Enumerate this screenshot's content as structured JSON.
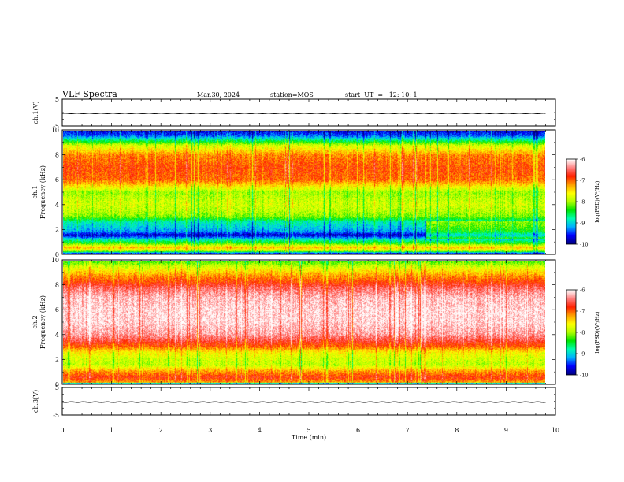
{
  "header": {
    "title": "VLF Spectra",
    "date": "Mar.30, 2024",
    "station": "station=MOS",
    "start": "start  UT  =   12: 10: 1"
  },
  "colors": {
    "spectrogram_scale": [
      "#00007f",
      "#0000ff",
      "#00b0ff",
      "#00ffb0",
      "#00e600",
      "#b0ff00",
      "#ffff00",
      "#ffa000",
      "#ff2000",
      "#ff8080",
      "#ffffff"
    ]
  },
  "chart_data": [
    {
      "type": "line",
      "ylabel": "ch.1(V)",
      "ylim": [
        -5,
        5
      ],
      "y_ticks": [
        "5",
        "-5"
      ],
      "xlim": [
        0,
        10
      ],
      "series": [
        {
          "values_approx_constant": -0.3
        }
      ]
    },
    {
      "type": "heatmap",
      "ylabel_line1": "ch.1",
      "ylabel_line2": "Frequency (kHz)",
      "ylim": [
        0,
        10
      ],
      "y_ticks": [
        "0",
        "2",
        "4",
        "6",
        "8",
        "10"
      ],
      "xlim": [
        0,
        9.8
      ],
      "colorbar": {
        "label": "log(PSD)(V²/Hz)",
        "ticks": [
          "-6",
          "-7",
          "-8",
          "-9",
          "-10"
        ],
        "range": [
          -10,
          -6
        ]
      },
      "freq_profile_kHz": [
        0.0,
        0.2,
        0.5,
        0.8,
        1.2,
        1.5,
        1.8,
        2.2,
        2.6,
        3.0,
        3.5,
        4.0,
        4.5,
        5.0,
        5.5,
        6.0,
        7.0,
        8.0,
        8.8,
        9.2,
        9.6,
        10.0
      ],
      "log_psd_profile": [
        -9.8,
        -8.0,
        -7.3,
        -8.2,
        -9.0,
        -9.8,
        -9.2,
        -9.0,
        -8.8,
        -8.1,
        -7.9,
        -7.8,
        -7.9,
        -8.0,
        -7.5,
        -7.0,
        -6.9,
        -7.1,
        -7.8,
        -8.6,
        -9.4,
        -9.7
      ]
    },
    {
      "type": "heatmap",
      "ylabel_line1": "ch.2",
      "ylabel_line2": "Frequency (kHz)",
      "ylim": [
        0,
        10
      ],
      "y_ticks": [
        "0",
        "2",
        "4",
        "6",
        "8",
        "10"
      ],
      "xlim": [
        0,
        9.8
      ],
      "colorbar": {
        "label": "log(PSD)(V²/Hz)",
        "ticks": [
          "-6",
          "-7",
          "-8",
          "-9",
          "-10"
        ],
        "range": [
          -10,
          -6
        ]
      },
      "freq_profile_kHz": [
        0.0,
        0.1,
        0.5,
        1.0,
        1.5,
        2.0,
        2.5,
        3.0,
        3.5,
        4.0,
        5.0,
        6.0,
        7.0,
        7.8,
        8.3,
        8.8,
        9.3,
        9.7,
        10.0
      ],
      "log_psd_profile": [
        -9.8,
        -7.2,
        -6.8,
        -7.2,
        -7.9,
        -7.8,
        -7.6,
        -7.0,
        -6.6,
        -6.3,
        -6.1,
        -6.1,
        -6.2,
        -6.5,
        -6.9,
        -7.2,
        -7.6,
        -8.0,
        -8.3
      ]
    },
    {
      "type": "line",
      "ylabel": "ch.3(V)",
      "ylim": [
        -5,
        5
      ],
      "y_ticks": [
        "5",
        "-5"
      ],
      "xlim": [
        0,
        10
      ],
      "series": [
        {
          "values_approx_constant": -0.3
        }
      ]
    }
  ],
  "x_axis": {
    "label": "Time  (min)",
    "ticks": [
      "0",
      "1",
      "2",
      "3",
      "4",
      "5",
      "6",
      "7",
      "8",
      "9",
      "10"
    ],
    "xlim": [
      0,
      10
    ]
  }
}
